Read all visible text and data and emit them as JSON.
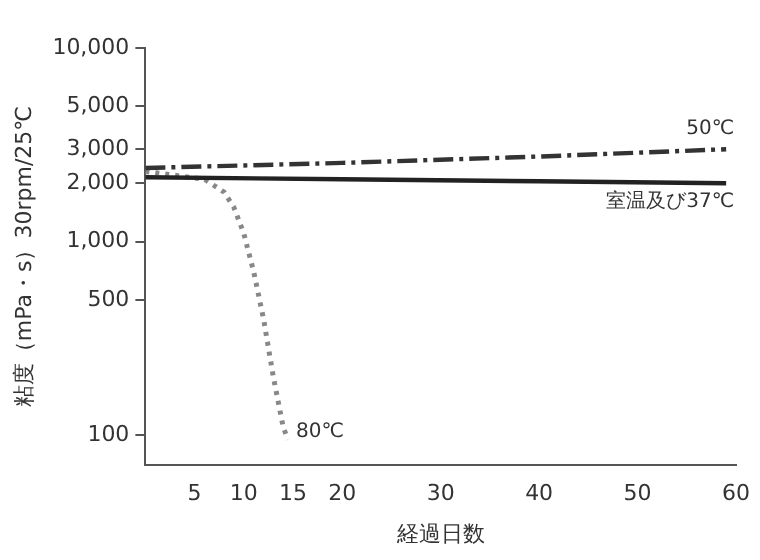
{
  "chart_data": {
    "type": "line",
    "xlabel": "経過日数",
    "ylabel": "粘度（mPa・s）30rpm/25℃",
    "log": "y",
    "xlim": [
      0,
      60
    ],
    "xticks": [
      5,
      10,
      15,
      20,
      30,
      40,
      50,
      60
    ],
    "ylim": [
      70,
      10000
    ],
    "yticks": [
      {
        "value": 100,
        "label": "100"
      },
      {
        "value": 500,
        "label": "500"
      },
      {
        "value": 1000,
        "label": "1,000"
      },
      {
        "value": 2000,
        "label": "2,000"
      },
      {
        "value": 3000,
        "label": "3,000"
      },
      {
        "value": 5000,
        "label": "5,000"
      },
      {
        "value": 10000,
        "label": "10,000"
      }
    ],
    "grid": false,
    "legend": false,
    "marker": "none",
    "series": [
      {
        "name": "50℃",
        "color": "#333333",
        "line_style": "dashed",
        "x": [
          0,
          20,
          40,
          59
        ],
        "values": [
          2400,
          2550,
          2750,
          3000
        ]
      },
      {
        "name": "室温及び37℃",
        "color": "#222222",
        "line_style": "solid",
        "x": [
          0,
          20,
          40,
          59
        ],
        "values": [
          2150,
          2100,
          2050,
          2000
        ]
      },
      {
        "name": "80℃",
        "color": "#888888",
        "line_style": "dotted",
        "x": [
          0,
          3,
          6,
          8,
          9,
          10,
          11,
          12,
          13,
          14,
          14.5
        ],
        "values": [
          2300,
          2200,
          2100,
          1800,
          1500,
          1100,
          700,
          400,
          200,
          110,
          95
        ]
      }
    ]
  }
}
